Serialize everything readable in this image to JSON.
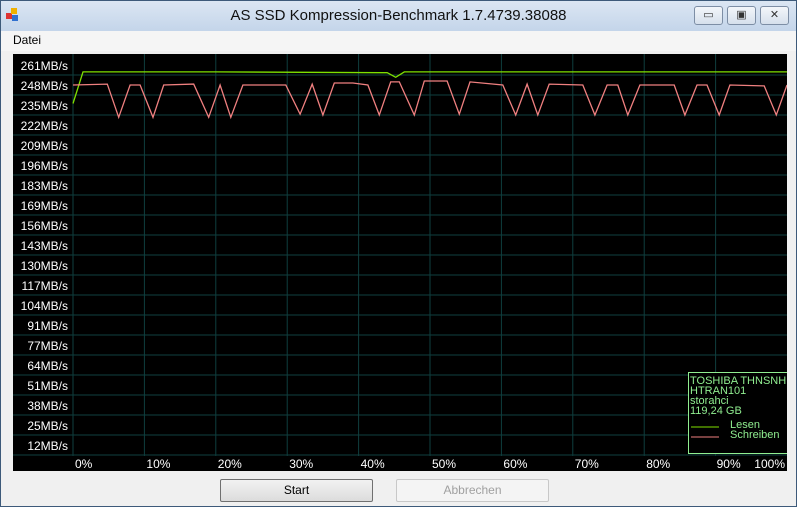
{
  "window": {
    "title": "AS SSD Kompression-Benchmark 1.7.4739.38088",
    "minimize": "▭",
    "maximize": "▣",
    "close": "✕"
  },
  "menu": {
    "items": [
      {
        "label": "Datei"
      }
    ]
  },
  "buttons": {
    "start": "Start",
    "cancel": "Abbrechen"
  },
  "legend": {
    "drive_lines": [
      "TOSHIBA THNSNH",
      "HTRAN101",
      "storahci",
      "119,24 GB"
    ],
    "read": "Lesen",
    "write": "Schreiben"
  },
  "colors": {
    "read": "#7fe000",
    "write": "#f08080",
    "grid": "#0f3f3f",
    "text": "#ffffff",
    "legend_text": "#90ee90"
  },
  "chart_data": {
    "type": "line",
    "y_tick_labels": [
      "261MB/s",
      "248MB/s",
      "235MB/s",
      "222MB/s",
      "209MB/s",
      "196MB/s",
      "183MB/s",
      "169MB/s",
      "156MB/s",
      "143MB/s",
      "130MB/s",
      "117MB/s",
      "104MB/s",
      "91MB/s",
      "77MB/s",
      "64MB/s",
      "51MB/s",
      "38MB/s",
      "25MB/s",
      "12MB/s"
    ],
    "x_tick_labels": [
      "0%",
      "10%",
      "20%",
      "30%",
      "40%",
      "50%",
      "60%",
      "70%",
      "80%",
      "90%",
      "100%"
    ],
    "xlim": [
      0,
      100
    ],
    "ylim": [
      12,
      261
    ],
    "grid": true,
    "legend_placement": "bottom-right",
    "series": [
      {
        "name": "Lesen",
        "x": [
          0,
          1.4,
          20,
          44,
          45.2,
          46.4,
          60,
          100
        ],
        "y": [
          236,
          256.5,
          256.5,
          256,
          253,
          256.5,
          256.5,
          256.5
        ]
      },
      {
        "name": "Schreiben",
        "x": [
          0,
          4.8,
          6.4,
          8,
          9.4,
          11.2,
          12.7,
          16.9,
          19,
          20.6,
          22.1,
          23.8,
          29.8,
          31.8,
          33.5,
          35,
          36.6,
          39.2,
          41.3,
          42.9,
          44.5,
          45.7,
          47.8,
          49.2,
          52.4,
          54.1,
          55.6,
          60.2,
          62,
          63.6,
          65.1,
          66.7,
          71.4,
          73.1,
          74.8,
          76.3,
          77.7,
          79.4,
          84.2,
          85.7,
          87.4,
          88.8,
          90.5,
          92,
          96.8,
          98.5,
          100
        ],
        "y": [
          248,
          248.6,
          227,
          248,
          248,
          227,
          248,
          248.6,
          227,
          248,
          227,
          248,
          248,
          229,
          248.6,
          228.5,
          249.3,
          249.3,
          248,
          228.5,
          250,
          250,
          228.5,
          250.6,
          250.6,
          229,
          250,
          248,
          228.5,
          248.6,
          228.5,
          248.6,
          248,
          228.5,
          248,
          248,
          228.5,
          248,
          248,
          228.5,
          248,
          248,
          228.5,
          248,
          247.4,
          228.5,
          248
        ]
      }
    ]
  }
}
